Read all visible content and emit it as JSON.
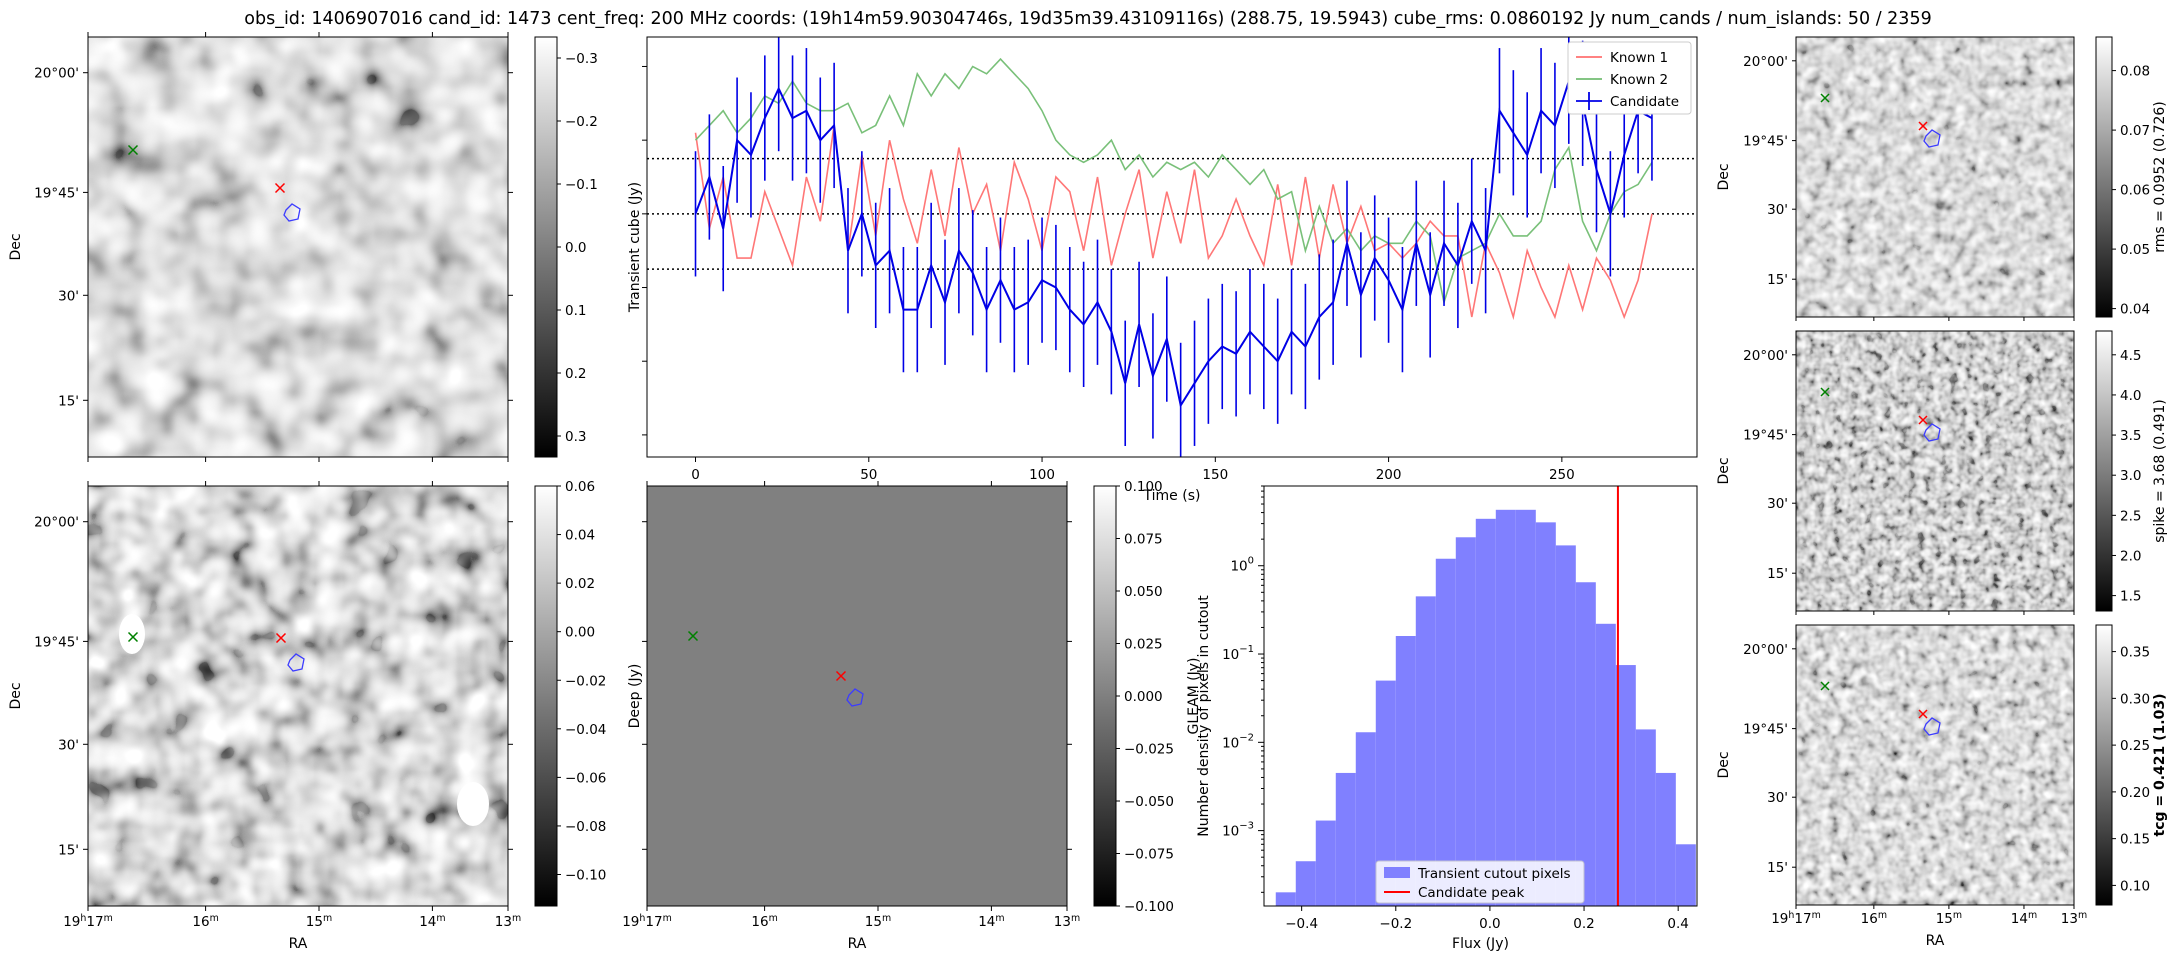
{
  "suptitle": "obs_id: 1406907016 cand_id: 1473 cent_freq: 200 MHz coords: (19h14m59.90304746s, 19d35m39.43109116s) (288.75, 19.5943) cube_rms: 0.0860192 Jy num_cands / num_islands: 50 / 2359",
  "colors": {
    "known1": "#ff7070",
    "known2": "#72bd72",
    "candidate": "#0000e6",
    "hist_fill": "#8080ff",
    "peak_line": "#ff0000",
    "marker_red": "#ff0000",
    "marker_green": "#008000",
    "contour": "#3c3cff"
  },
  "sky_axes": {
    "ra_ticks": [
      {
        "h": "19",
        "m": "17",
        "main": "19h17m"
      },
      {
        "m": "16",
        "main": "16m"
      },
      {
        "m": "15",
        "main": "15m"
      },
      {
        "m": "14",
        "main": "14m"
      },
      {
        "m": "13",
        "main": "13m"
      }
    ],
    "dec_ticks": [
      "20°00'",
      "19°45'",
      "30'",
      "15'"
    ],
    "ra_label": "RA",
    "dec_label": "Dec"
  },
  "panels": {
    "transient_cube": {
      "cbar_label": "Transient cube (Jy)",
      "cbar_ticks": [
        "0.3",
        "0.2",
        "0.1",
        "0.0",
        "−0.1",
        "−0.2",
        "−0.3"
      ]
    },
    "deep": {
      "cbar_label": "Deep (Jy)",
      "cbar_ticks": [
        "0.06",
        "0.04",
        "0.02",
        "0.00",
        "−0.02",
        "−0.04",
        "−0.06",
        "−0.08",
        "−0.10"
      ]
    },
    "gleam": {
      "cbar_label": "GLEAM (Jy)",
      "cbar_ticks": [
        "0.100",
        "0.075",
        "0.050",
        "0.025",
        "0.000",
        "−0.025",
        "−0.050",
        "−0.075",
        "−0.100"
      ]
    },
    "rms": {
      "cbar_label": "rms = 0.0952 (0.726)",
      "cbar_ticks": [
        "0.08",
        "0.07",
        "0.06",
        "0.05",
        "0.04"
      ]
    },
    "spike": {
      "cbar_label": "spike = 3.68 (0.491)",
      "cbar_ticks": [
        "4.5",
        "4.0",
        "3.5",
        "3.0",
        "2.5",
        "2.0",
        "1.5"
      ]
    },
    "tcg": {
      "cbar_label": "tcg = 0.421 (1.03)",
      "cbar_ticks": [
        "0.35",
        "0.30",
        "0.25",
        "0.20",
        "0.15",
        "0.10"
      ]
    }
  },
  "chart_data": [
    {
      "type": "line",
      "name": "lightcurve",
      "xlabel": "Time (s)",
      "ylabel": "",
      "xlim": [
        -14,
        289
      ],
      "ylim": [
        -0.33,
        0.24
      ],
      "xticks": [
        0,
        50,
        100,
        150,
        200,
        250
      ],
      "hlines": [
        -0.075,
        0.0,
        0.075
      ],
      "legend": [
        "Known 1",
        "Known 2",
        "Candidate"
      ],
      "legend_loc": "top-right",
      "series": [
        {
          "name": "Known 1",
          "x": [
            0,
            4,
            8,
            12,
            16,
            20,
            24,
            28,
            32,
            36,
            40,
            44,
            48,
            52,
            56,
            60,
            64,
            68,
            72,
            76,
            80,
            84,
            88,
            92,
            96,
            100,
            104,
            108,
            112,
            116,
            120,
            124,
            128,
            132,
            136,
            140,
            144,
            148,
            152,
            156,
            160,
            164,
            168,
            172,
            176,
            180,
            184,
            188,
            192,
            196,
            200,
            204,
            208,
            212,
            216,
            220,
            224,
            228,
            232,
            236,
            240,
            244,
            248,
            252,
            256,
            260,
            264,
            268,
            272,
            276
          ],
          "y": [
            0.11,
            -0.02,
            0.05,
            -0.06,
            -0.06,
            0.03,
            -0.02,
            -0.07,
            0.05,
            -0.01,
            0.12,
            -0.05,
            0.08,
            -0.03,
            0.1,
            0.02,
            -0.04,
            0.06,
            -0.03,
            0.09,
            0.0,
            0.04,
            -0.05,
            0.07,
            0.02,
            -0.05,
            0.05,
            0.03,
            -0.05,
            0.05,
            -0.07,
            0.0,
            0.06,
            -0.06,
            0.03,
            -0.04,
            0.06,
            -0.06,
            -0.03,
            0.02,
            -0.03,
            -0.07,
            0.04,
            -0.07,
            0.05,
            -0.06,
            0.04,
            -0.04,
            0.01,
            -0.05,
            -0.04,
            -0.06,
            -0.04,
            -0.01,
            -0.03,
            -0.03,
            -0.14,
            -0.04,
            -0.08,
            -0.14,
            -0.05,
            -0.1,
            -0.14,
            -0.07,
            -0.13,
            -0.06,
            -0.09,
            -0.14,
            -0.09,
            0.0
          ]
        },
        {
          "name": "Known 2",
          "x": [
            0,
            4,
            8,
            12,
            16,
            20,
            24,
            28,
            32,
            36,
            40,
            44,
            48,
            52,
            56,
            60,
            64,
            68,
            72,
            76,
            80,
            84,
            88,
            92,
            96,
            100,
            104,
            108,
            112,
            116,
            120,
            124,
            128,
            132,
            136,
            140,
            144,
            148,
            152,
            156,
            160,
            164,
            168,
            172,
            176,
            180,
            184,
            188,
            192,
            196,
            200,
            204,
            208,
            212,
            216,
            220,
            224,
            228,
            232,
            236,
            240,
            244,
            248,
            252,
            256,
            260,
            264,
            268,
            272,
            276
          ],
          "y": [
            0.1,
            0.12,
            0.14,
            0.11,
            0.13,
            0.16,
            0.15,
            0.18,
            0.15,
            0.14,
            0.14,
            0.15,
            0.11,
            0.12,
            0.16,
            0.12,
            0.19,
            0.16,
            0.19,
            0.17,
            0.2,
            0.19,
            0.21,
            0.19,
            0.17,
            0.14,
            0.1,
            0.08,
            0.07,
            0.08,
            0.1,
            0.06,
            0.08,
            0.05,
            0.07,
            0.06,
            0.07,
            0.05,
            0.08,
            0.06,
            0.04,
            0.06,
            0.02,
            0.03,
            -0.05,
            0.01,
            -0.04,
            -0.02,
            -0.05,
            -0.03,
            -0.04,
            -0.04,
            -0.01,
            -0.03,
            -0.12,
            -0.06,
            -0.05,
            -0.04,
            0.0,
            -0.03,
            -0.03,
            -0.01,
            0.06,
            0.09,
            -0.01,
            -0.05,
            0.0,
            0.03,
            0.04,
            0.07
          ]
        },
        {
          "name": "Candidate",
          "x": [
            0,
            4,
            8,
            12,
            16,
            20,
            24,
            28,
            32,
            36,
            40,
            44,
            48,
            52,
            56,
            60,
            64,
            68,
            72,
            76,
            80,
            84,
            88,
            92,
            96,
            100,
            104,
            108,
            112,
            116,
            120,
            124,
            128,
            132,
            136,
            140,
            144,
            148,
            152,
            156,
            160,
            164,
            168,
            172,
            176,
            180,
            184,
            188,
            192,
            196,
            200,
            204,
            208,
            212,
            216,
            220,
            224,
            228,
            232,
            236,
            240,
            244,
            248,
            252,
            256,
            260,
            264,
            268,
            272,
            276
          ],
          "y": [
            0.0,
            0.05,
            -0.02,
            0.1,
            0.08,
            0.13,
            0.17,
            0.13,
            0.14,
            0.1,
            0.12,
            -0.05,
            0.0,
            -0.07,
            -0.05,
            -0.13,
            -0.13,
            -0.07,
            -0.12,
            -0.05,
            -0.08,
            -0.13,
            -0.09,
            -0.13,
            -0.12,
            -0.09,
            -0.1,
            -0.13,
            -0.15,
            -0.12,
            -0.16,
            -0.23,
            -0.15,
            -0.22,
            -0.17,
            -0.26,
            -0.23,
            -0.2,
            -0.18,
            -0.19,
            -0.16,
            -0.18,
            -0.2,
            -0.16,
            -0.18,
            -0.14,
            -0.12,
            -0.04,
            -0.11,
            -0.06,
            -0.09,
            -0.13,
            -0.04,
            -0.11,
            -0.04,
            -0.07,
            -0.01,
            -0.05,
            0.14,
            0.11,
            0.08,
            0.14,
            0.12,
            0.18,
            0.15,
            0.06,
            0.0,
            0.08,
            0.14,
            0.13
          ],
          "yerr": 0.085
        }
      ]
    },
    {
      "type": "bar",
      "name": "flux_histogram",
      "xlabel": "Flux (Jy)",
      "ylabel": "Number density of pixels in cutout",
      "yscale": "log",
      "xlim": [
        -0.48,
        0.44
      ],
      "ylim": [
        0.00014,
        8
      ],
      "xticks": [
        -0.4,
        -0.2,
        0.0,
        0.2,
        0.4
      ],
      "ytick_exponents": [
        -3,
        -2,
        -1,
        0
      ],
      "bin_edges": [
        -0.455,
        -0.4125,
        -0.37,
        -0.3275,
        -0.285,
        -0.2425,
        -0.2,
        -0.1575,
        -0.115,
        -0.0725,
        -0.03,
        0.0125,
        0.055,
        0.0975,
        0.14,
        0.1825,
        0.225,
        0.2675,
        0.31,
        0.3525,
        0.395,
        0.4375
      ],
      "values": [
        0.0002,
        0.00045,
        0.0013,
        0.0045,
        0.013,
        0.05,
        0.16,
        0.45,
        1.2,
        2.1,
        3.4,
        4.3,
        4.3,
        3.1,
        1.7,
        0.65,
        0.22,
        0.075,
        0.014,
        0.0045,
        0.0007
      ],
      "candidate_peak": 0.272,
      "legend": [
        "Transient cutout pixels",
        "Candidate peak"
      ],
      "legend_loc": "lower-center"
    }
  ]
}
